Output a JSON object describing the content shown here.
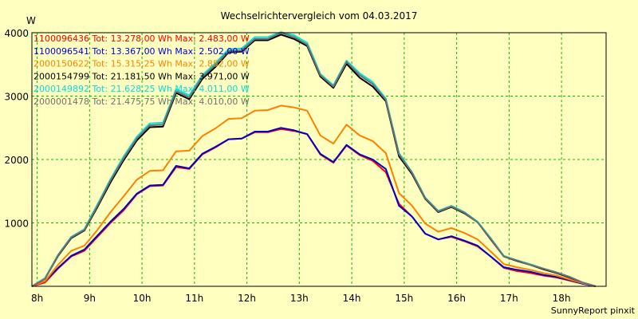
{
  "chart_data": {
    "type": "line",
    "title": "Wechselrichtervergleich vom 04.03.2017",
    "ylabel": "W",
    "xlabel": "",
    "ylim": [
      0,
      4000
    ],
    "yticks": [
      1000,
      2000,
      3000,
      4000
    ],
    "xlim": [
      7.9,
      18.85
    ],
    "xticks": [
      8,
      9,
      10,
      11,
      12,
      13,
      14,
      15,
      16,
      17,
      18
    ],
    "xtick_labels": [
      "8h",
      "9h",
      "10h",
      "11h",
      "12h",
      "13h",
      "14h",
      "15h",
      "16h",
      "17h",
      "18h"
    ],
    "grid": true,
    "legend_position": "top-left",
    "footer": "SunnyReport pinxit",
    "colors": {
      "background": "#ffffc0",
      "plot_background": "#ffffc0",
      "grid": "#00c000",
      "axis": "#000000"
    },
    "x": [
      7.9,
      8.15,
      8.4,
      8.65,
      8.9,
      9.15,
      9.4,
      9.65,
      9.9,
      10.15,
      10.4,
      10.65,
      10.9,
      11.15,
      11.4,
      11.65,
      11.9,
      12.15,
      12.4,
      12.65,
      12.9,
      13.15,
      13.4,
      13.65,
      13.9,
      14.15,
      14.4,
      14.65,
      14.9,
      15.15,
      15.4,
      15.65,
      15.9,
      16.15,
      16.4,
      16.65,
      16.9,
      17.15,
      17.4,
      17.65,
      17.9,
      18.15,
      18.4,
      18.65
    ],
    "series": [
      {
        "name": "1100096436 Tot: 13.278,00 Wh Max: 2.483,00 W",
        "color": "#ff0000",
        "values": [
          0,
          60,
          280,
          470,
          560,
          780,
          1000,
          1200,
          1450,
          1580,
          1590,
          1880,
          1850,
          2080,
          2190,
          2320,
          2330,
          2430,
          2430,
          2480,
          2450,
          2400,
          2080,
          1950,
          2220,
          2070,
          1980,
          1800,
          1300,
          1100,
          830,
          740,
          780,
          710,
          630,
          470,
          290,
          240,
          210,
          170,
          140,
          90,
          40,
          0
        ]
      },
      {
        "name": "1100096541 Tot: 13.367,00 Wh Max: 2.502,00 W",
        "color": "#0000cc",
        "values": [
          0,
          80,
          290,
          480,
          580,
          800,
          1020,
          1220,
          1460,
          1590,
          1600,
          1900,
          1860,
          2090,
          2200,
          2320,
          2330,
          2440,
          2440,
          2500,
          2460,
          2400,
          2090,
          1960,
          2230,
          2080,
          2000,
          1850,
          1270,
          1100,
          830,
          740,
          790,
          720,
          640,
          470,
          300,
          260,
          230,
          180,
          150,
          100,
          40,
          0
        ]
      },
      {
        "name": "2000150622 Tot: 15.315,25 Wh Max: 2.852,00 W",
        "color": "#ff8000",
        "values": [
          0,
          80,
          340,
          560,
          640,
          890,
          1170,
          1420,
          1680,
          1820,
          1830,
          2130,
          2140,
          2370,
          2490,
          2640,
          2650,
          2770,
          2780,
          2850,
          2820,
          2770,
          2380,
          2250,
          2550,
          2380,
          2290,
          2100,
          1470,
          1270,
          990,
          860,
          920,
          840,
          740,
          550,
          350,
          300,
          260,
          210,
          170,
          110,
          50,
          0
        ]
      },
      {
        "name": "2000154799 Tot: 21.181,50 Wh Max: 3.971,00 W",
        "color": "#000000",
        "values": [
          0,
          120,
          480,
          760,
          880,
          1250,
          1640,
          1990,
          2300,
          2510,
          2520,
          3050,
          2950,
          3270,
          3460,
          3690,
          3700,
          3880,
          3880,
          3970,
          3900,
          3790,
          3310,
          3130,
          3510,
          3290,
          3150,
          2920,
          2050,
          1770,
          1380,
          1170,
          1250,
          1150,
          1010,
          740,
          470,
          400,
          340,
          270,
          210,
          140,
          60,
          0
        ]
      },
      {
        "name": "2000149892 Tot: 21.628,25 Wh Max: 4.011,00 W",
        "color": "#00e0e0",
        "values": [
          0,
          130,
          500,
          780,
          900,
          1290,
          1690,
          2050,
          2360,
          2570,
          2580,
          3110,
          3010,
          3330,
          3520,
          3740,
          3750,
          3930,
          3930,
          4010,
          3960,
          3840,
          3350,
          3170,
          3560,
          3360,
          3220,
          2960,
          2100,
          1800,
          1400,
          1190,
          1270,
          1170,
          1020,
          760,
          480,
          410,
          350,
          280,
          220,
          150,
          60,
          0
        ]
      },
      {
        "name": "2000001478 Tot: 21.475,75 Wh Max: 4.010,00 W",
        "color": "#707070",
        "values": [
          0,
          120,
          490,
          770,
          890,
          1270,
          1670,
          2020,
          2330,
          2540,
          2550,
          3080,
          2980,
          3300,
          3490,
          3710,
          3720,
          3900,
          3900,
          4000,
          3930,
          3810,
          3330,
          3150,
          3540,
          3330,
          3190,
          2940,
          2080,
          1790,
          1390,
          1180,
          1260,
          1160,
          1010,
          750,
          470,
          410,
          340,
          280,
          220,
          150,
          60,
          0
        ]
      }
    ]
  }
}
